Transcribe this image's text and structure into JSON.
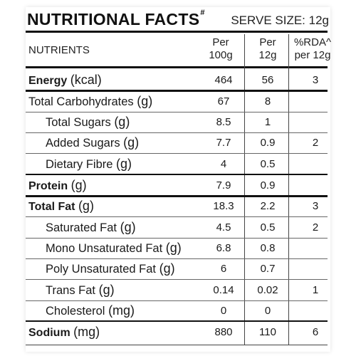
{
  "header": {
    "title": "NUTRITIONAL FACTS",
    "title_mark": "#",
    "serve_size": "SERVE SIZE: 12g"
  },
  "columns": {
    "nutrients": "NUTRIENTS",
    "per100_line1": "Per",
    "per100_line2": "100g",
    "per12_line1": "Per",
    "per12_line2": "12g",
    "rda_line1": "%RDA^",
    "rda_line2": "per 12g"
  },
  "rows": [
    {
      "name": "Energy",
      "unit": "(kcal)",
      "per100": "464",
      "per12": "56",
      "rda": "3",
      "bold": true,
      "indent": false
    },
    {
      "name": "Total Carbohydrates",
      "unit": "(g)",
      "per100": "67",
      "per12": "8",
      "rda": "",
      "bold": false,
      "indent": false
    },
    {
      "name": "Total Sugars",
      "unit": "(g)",
      "per100": "8.5",
      "per12": "1",
      "rda": "",
      "bold": false,
      "indent": true
    },
    {
      "name": "Added Sugars",
      "unit": "(g)",
      "per100": "7.7",
      "per12": "0.9",
      "rda": "2",
      "bold": false,
      "indent": true
    },
    {
      "name": "Dietary Fibre",
      "unit": "(g)",
      "per100": "4",
      "per12": "0.5",
      "rda": "",
      "bold": false,
      "indent": true
    },
    {
      "name": "Protein",
      "unit": "(g)",
      "per100": "7.9",
      "per12": "0.9",
      "rda": "",
      "bold": true,
      "indent": false
    },
    {
      "name": "Total Fat",
      "unit": "(g)",
      "per100": "18.3",
      "per12": "2.2",
      "rda": "3",
      "bold": true,
      "indent": false
    },
    {
      "name": "Saturated Fat",
      "unit": "(g)",
      "per100": "4.5",
      "per12": "0.5",
      "rda": "2",
      "bold": false,
      "indent": true
    },
    {
      "name": "Mono Unsaturated Fat",
      "unit": "(g)",
      "per100": "6.8",
      "per12": "0.8",
      "rda": "",
      "bold": false,
      "indent": true
    },
    {
      "name": "Poly Unsaturated Fat",
      "unit": "(g)",
      "per100": "6",
      "per12": "0.7",
      "rda": "",
      "bold": false,
      "indent": true
    },
    {
      "name": "Trans Fat",
      "unit": "(g)",
      "per100": "0.14",
      "per12": "0.02",
      "rda": "1",
      "bold": false,
      "indent": true
    },
    {
      "name": "Cholesterol",
      "unit": "(mg)",
      "per100": "0",
      "per12": "0",
      "rda": "",
      "bold": false,
      "indent": true
    },
    {
      "name": "Sodium",
      "unit": "(mg)",
      "per100": "880",
      "per12": "110",
      "rda": "6",
      "bold": true,
      "indent": false
    }
  ]
}
